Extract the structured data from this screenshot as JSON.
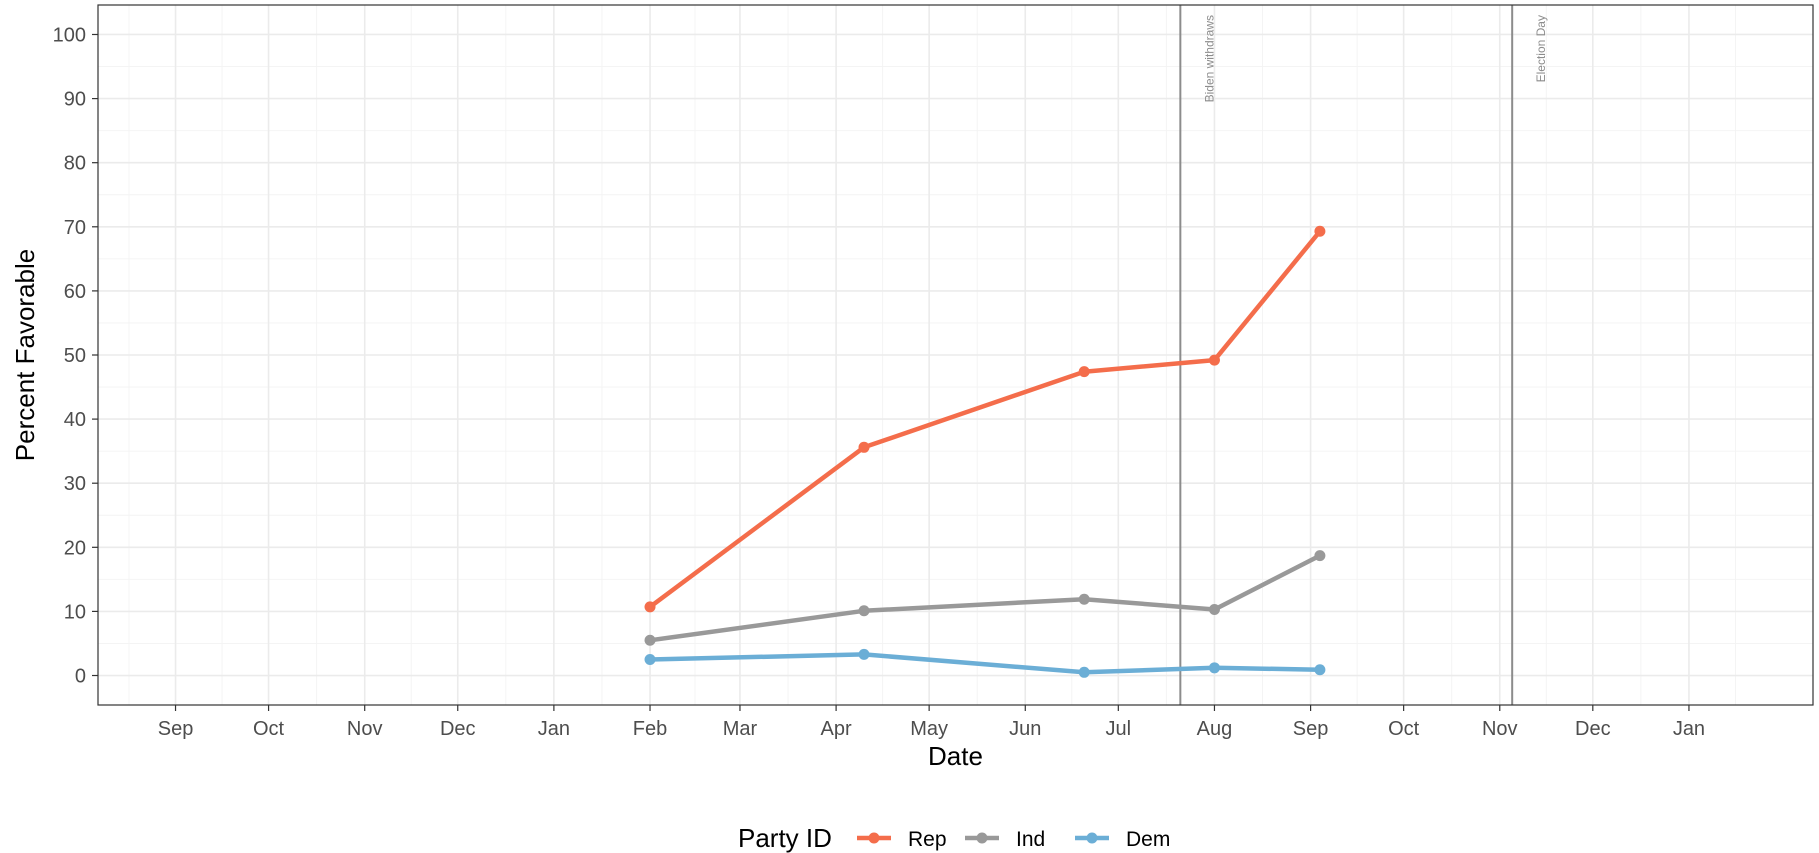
{
  "chart_data": {
    "type": "line",
    "xlabel": "Date",
    "ylabel": "Percent Favorable",
    "x_axis": {
      "type": "date",
      "range": [
        "2023-08-07",
        "2025-02-10"
      ],
      "ticks": [
        {
          "date": "2023-09-01",
          "label": "Sep"
        },
        {
          "date": "2023-10-01",
          "label": "Oct"
        },
        {
          "date": "2023-11-01",
          "label": "Nov"
        },
        {
          "date": "2023-12-01",
          "label": "Dec"
        },
        {
          "date": "2024-01-01",
          "label": "Jan"
        },
        {
          "date": "2024-02-01",
          "label": "Feb"
        },
        {
          "date": "2024-03-01",
          "label": "Mar"
        },
        {
          "date": "2024-04-01",
          "label": "Apr"
        },
        {
          "date": "2024-05-01",
          "label": "May"
        },
        {
          "date": "2024-06-01",
          "label": "Jun"
        },
        {
          "date": "2024-07-01",
          "label": "Jul"
        },
        {
          "date": "2024-08-01",
          "label": "Aug"
        },
        {
          "date": "2024-09-01",
          "label": "Sep"
        },
        {
          "date": "2024-10-01",
          "label": "Oct"
        },
        {
          "date": "2024-11-01",
          "label": "Nov"
        },
        {
          "date": "2024-12-01",
          "label": "Dec"
        },
        {
          "date": "2025-01-01",
          "label": "Jan"
        }
      ]
    },
    "y_axis": {
      "range": [
        -4.6,
        104.6
      ],
      "ticks": [
        0,
        10,
        20,
        30,
        40,
        50,
        60,
        70,
        80,
        90,
        100
      ]
    },
    "grid": true,
    "series": [
      {
        "name": "Rep",
        "color": "#F46D4B",
        "points": [
          {
            "x": "2024-02-01",
            "y": 10.7
          },
          {
            "x": "2024-04-10",
            "y": 35.6
          },
          {
            "x": "2024-06-20",
            "y": 47.4
          },
          {
            "x": "2024-08-01",
            "y": 49.2
          },
          {
            "x": "2024-09-04",
            "y": 69.3
          }
        ]
      },
      {
        "name": "Ind",
        "color": "#999999",
        "points": [
          {
            "x": "2024-02-01",
            "y": 5.5
          },
          {
            "x": "2024-04-10",
            "y": 10.1
          },
          {
            "x": "2024-06-20",
            "y": 11.9
          },
          {
            "x": "2024-08-01",
            "y": 10.3
          },
          {
            "x": "2024-09-04",
            "y": 18.7
          }
        ]
      },
      {
        "name": "Dem",
        "color": "#6BAED6",
        "points": [
          {
            "x": "2024-02-01",
            "y": 2.5
          },
          {
            "x": "2024-04-10",
            "y": 3.3
          },
          {
            "x": "2024-06-20",
            "y": 0.5
          },
          {
            "x": "2024-08-01",
            "y": 1.2
          },
          {
            "x": "2024-09-04",
            "y": 0.9
          }
        ]
      }
    ],
    "annotations": [
      {
        "type": "vline",
        "x": "2024-07-21",
        "label": "Biden withdraws"
      },
      {
        "type": "vline",
        "x": "2024-11-05",
        "label": "Election Day"
      }
    ],
    "legend": {
      "title": "Party ID",
      "position": "bottom"
    }
  }
}
